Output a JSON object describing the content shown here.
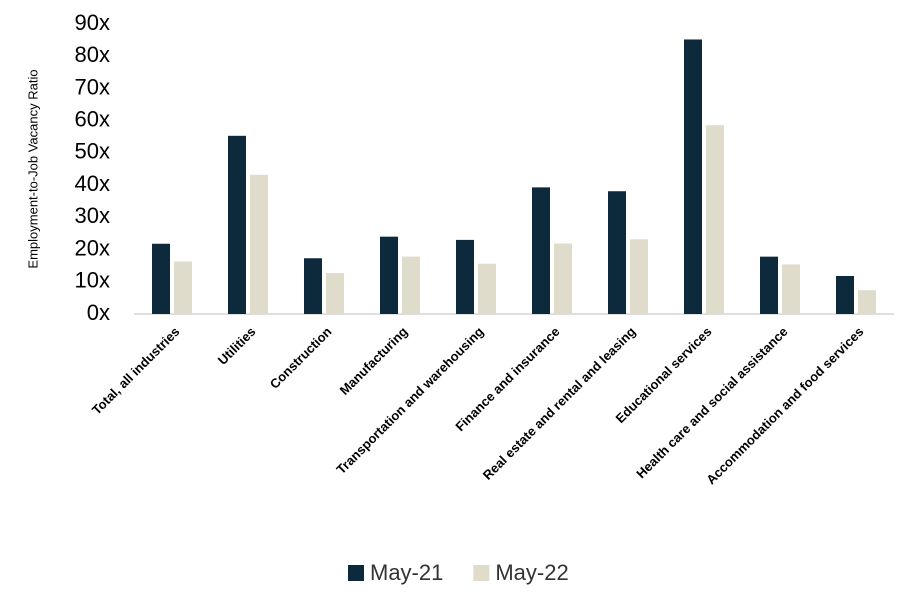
{
  "chart_data": {
    "type": "bar",
    "y_axis_label": "Employment-to-Job Vacancy Ratio",
    "categories": [
      "Total, all industries",
      "Utilities",
      "Construction",
      "Manufacturing",
      "Transportation and warehousing",
      "Finance and insurance",
      "Real estate and rental and leasing",
      "Educational services",
      "Health care and social assistance",
      "Accommodation and food services"
    ],
    "series": [
      {
        "name": "May-21",
        "color": "#0d2a3d",
        "values": [
          21.8,
          55.3,
          17.3,
          24.0,
          23.0,
          39.3,
          38.1,
          85.2,
          17.8,
          11.8
        ]
      },
      {
        "name": "May-22",
        "color": "#e0dccc",
        "values": [
          16.3,
          43.2,
          12.7,
          17.8,
          15.6,
          21.9,
          23.2,
          58.6,
          15.4,
          7.4
        ]
      }
    ],
    "ylim": [
      0,
      90
    ],
    "yticks": [
      {
        "value": 0,
        "label": "0x"
      },
      {
        "value": 10,
        "label": "10x"
      },
      {
        "value": 20,
        "label": "20x"
      },
      {
        "value": 30,
        "label": "30x"
      },
      {
        "value": 40,
        "label": "40x"
      },
      {
        "value": 50,
        "label": "50x"
      },
      {
        "value": 60,
        "label": "60x"
      },
      {
        "value": 70,
        "label": "70x"
      },
      {
        "value": 80,
        "label": "80x"
      },
      {
        "value": 90,
        "label": "90x"
      }
    ],
    "grid": false,
    "legend": "bottom"
  }
}
